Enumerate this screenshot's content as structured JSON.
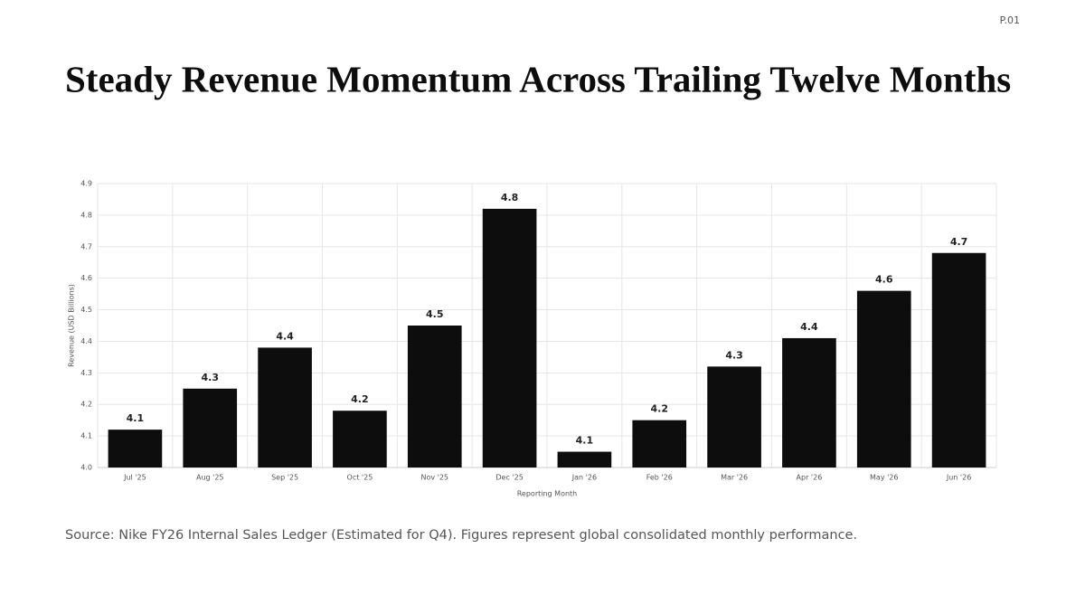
{
  "page": "P.01",
  "chart_data": {
    "type": "bar",
    "title": "Steady Revenue Momentum Across Trailing Twelve Months",
    "note": "Source: Nike FY26 Internal Sales Ledger (Estimated for Q4). Figures represent global consolidated monthly performance.",
    "x_label": "Reporting Month",
    "y_label": "Revenue (USD Billions)",
    "categories": [
      "Jul '25",
      "Aug '25",
      "Sep '25",
      "Oct '25",
      "Nov '25",
      "Dec '25",
      "Jan '26",
      "Feb '26",
      "Mar '26",
      "Apr '26",
      "May '26",
      "Jun '26"
    ],
    "values": [
      4.12,
      4.25,
      4.38,
      4.18,
      4.45,
      4.82,
      4.05,
      4.15,
      4.32,
      4.41,
      4.56,
      4.68
    ],
    "value_labels": [
      "4.1",
      "4.3",
      "4.4",
      "4.2",
      "4.5",
      "4.8",
      "4.1",
      "4.2",
      "4.3",
      "4.4",
      "4.6",
      "4.7"
    ],
    "color": "#0d0d0d",
    "ylim": [
      4.0,
      4.9
    ],
    "yticks": [
      {
        "value": 4,
        "label": "4.0"
      },
      4.1,
      4.2,
      4.3,
      4.4,
      4.5,
      4.6,
      4.7,
      4.8,
      4.9
    ],
    "grid": true
  }
}
